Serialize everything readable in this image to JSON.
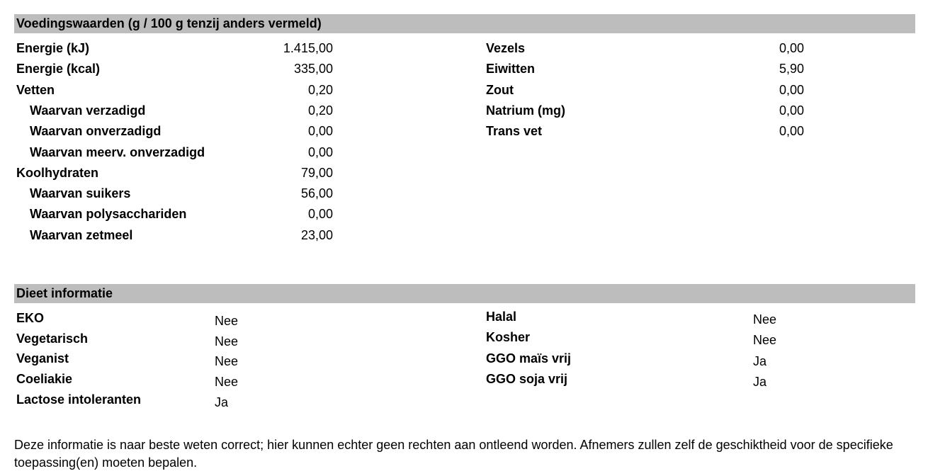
{
  "colors": {
    "section_header_bg": "#bdbdbd",
    "text": "#000000",
    "page_bg": "#ffffff"
  },
  "nutrition": {
    "header": "Voedingswaarden (g / 100 g tenzij anders vermeld)",
    "left_rows": [
      {
        "label": "Energie (kJ)",
        "value": "1.415,00",
        "indent": false
      },
      {
        "label": "Energie (kcal)",
        "value": "335,00",
        "indent": false
      },
      {
        "label": "Vetten",
        "value": "0,20",
        "indent": false
      },
      {
        "label": "Waarvan verzadigd",
        "value": "0,20",
        "indent": true
      },
      {
        "label": "Waarvan onverzadigd",
        "value": "0,00",
        "indent": true
      },
      {
        "label": "Waarvan meerv. onverzadigd",
        "value": "0,00",
        "indent": true
      },
      {
        "label": "Koolhydraten",
        "value": "79,00",
        "indent": false
      },
      {
        "label": "Waarvan suikers",
        "value": "56,00",
        "indent": true
      },
      {
        "label": "Waarvan polysacchariden",
        "value": "0,00",
        "indent": true
      },
      {
        "label": "Waarvan zetmeel",
        "value": "23,00",
        "indent": true
      }
    ],
    "right_rows": [
      {
        "label": "Vezels",
        "value": "0,00",
        "indent": false
      },
      {
        "label": "Eiwitten",
        "value": "5,90",
        "indent": false
      },
      {
        "label": "Zout",
        "value": "0,00",
        "indent": false
      },
      {
        "label": "Natrium (mg)",
        "value": "0,00",
        "indent": false
      },
      {
        "label": "Trans vet",
        "value": "0,00",
        "indent": false
      }
    ]
  },
  "diet": {
    "header": "Dieet informatie",
    "left_rows": [
      {
        "label": "EKO",
        "value": "Nee",
        "indent": false
      },
      {
        "label": "Vegetarisch",
        "value": "Nee",
        "indent": false
      },
      {
        "label": "Veganist",
        "value": "Nee",
        "indent": false
      },
      {
        "label": "Coeliakie",
        "value": "Nee",
        "indent": false
      },
      {
        "label": "Lactose intoleranten",
        "value": "Ja",
        "indent": false
      }
    ],
    "right_rows": [
      {
        "label": "Halal",
        "value": "Nee",
        "indent": false
      },
      {
        "label": "Kosher",
        "value": "Nee",
        "indent": false
      },
      {
        "label": "GGO maïs vrij",
        "value": "Ja",
        "indent": false
      },
      {
        "label": "GGO soja vrij",
        "value": "Ja",
        "indent": false
      }
    ]
  },
  "disclaimer": "Deze informatie is naar beste weten correct; hier kunnen echter geen rechten aan ontleend worden. Afnemers zullen zelf de geschiktheid voor de specifieke toepassing(en) moeten bepalen."
}
